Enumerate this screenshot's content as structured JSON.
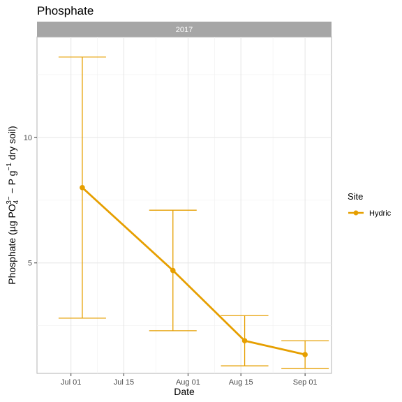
{
  "chart_data": {
    "type": "line",
    "title": "Phosphate",
    "facet_label": "2017",
    "xlabel": "Date",
    "ylabel": {
      "prefix": "Phosphate (",
      "mu": "µ",
      "unit_g": "g PO",
      "sub": "4",
      "sup": "3−",
      "mid": " − P g",
      "sup2": "−1",
      "suffix": " dry soil)"
    },
    "x_ticks": [
      "Jul 01",
      "Jul 15",
      "Aug 01",
      "Aug 15",
      "Sep 01"
    ],
    "x_tick_dates": [
      "2017-07-01",
      "2017-07-15",
      "2017-08-01",
      "2017-08-15",
      "2017-09-01"
    ],
    "xlim": [
      "2017-06-22",
      "2017-09-08"
    ],
    "y_ticks": [
      5,
      10
    ],
    "ylim": [
      0.6,
      14.0
    ],
    "grid": true,
    "legend": {
      "title": "Site",
      "placement": "right"
    },
    "series": [
      {
        "name": "Hydric",
        "color": "#E69F00",
        "points": [
          {
            "x": "2017-07-04",
            "y": 8.0,
            "ymin": 2.8,
            "ymax": 13.2
          },
          {
            "x": "2017-07-28",
            "y": 4.7,
            "ymin": 2.3,
            "ymax": 7.1
          },
          {
            "x": "2017-08-16",
            "y": 1.9,
            "ymin": 0.9,
            "ymax": 2.9
          },
          {
            "x": "2017-09-01",
            "y": 1.35,
            "ymin": 0.8,
            "ymax": 1.9
          }
        ]
      }
    ]
  }
}
